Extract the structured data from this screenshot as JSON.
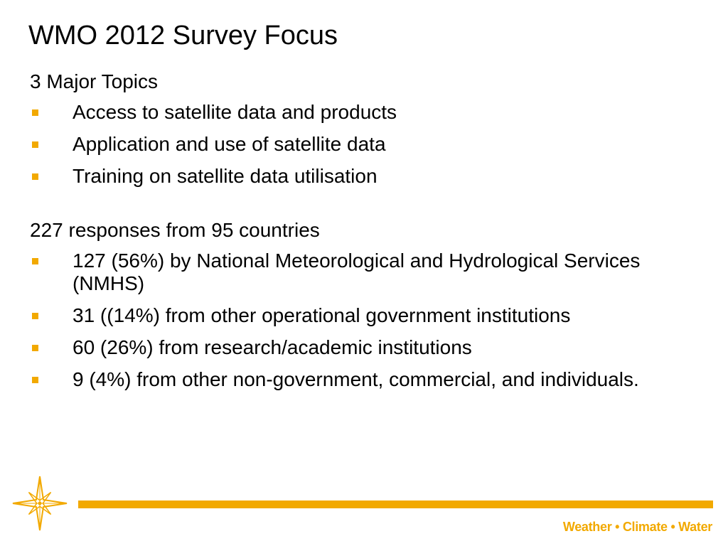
{
  "slide": {
    "title": "WMO 2012 Survey Focus"
  },
  "sections": [
    {
      "heading": "3 Major Topics",
      "bullets": [
        "Access to satellite data and products",
        "Application and use of satellite data",
        "Training on satellite data utilisation"
      ]
    },
    {
      "heading": "227 responses from 95 countries",
      "bullets": [
        "127 (56%) by National Meteorological and Hydrological Services (NMHS)",
        "31 ((14%) from other operational government institutions",
        "60 (26%) from research/academic institutions",
        "9 (4%) from other non-government, commercial, and individuals."
      ]
    }
  ],
  "footer": {
    "logo_icon": "compass-star-icon",
    "tagline": "Weather • Climate • Water"
  },
  "colors": {
    "accent": "#f2a900",
    "text": "#000000",
    "background": "#ffffff"
  }
}
